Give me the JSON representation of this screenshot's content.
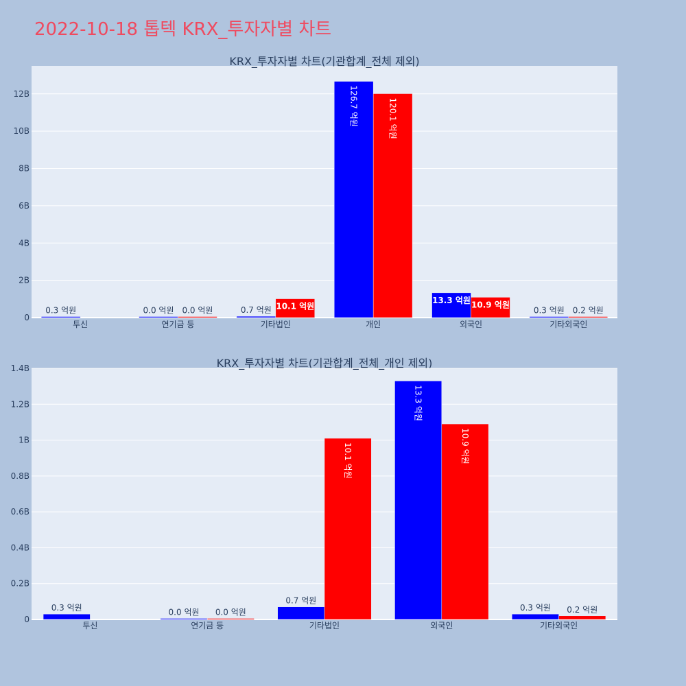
{
  "page_title": "2022-10-18 톱텍 KRX_투자자별 차트",
  "colors": {
    "background": "#b0c4de",
    "plot_bg": "#e5ecf6",
    "buy": "#0000ff",
    "sell": "#ff0000",
    "title": "#ef4a5f"
  },
  "chart_data": [
    {
      "type": "bar",
      "title": "KRX_투자자별 차트(기관합계_전체 제외)",
      "categories": [
        "투신",
        "연기금 등",
        "기타법인",
        "개인",
        "외국인",
        "기타외국인"
      ],
      "ylim": [
        0,
        13500000000
      ],
      "yticks": [
        0,
        2000000000,
        4000000000,
        6000000000,
        8000000000,
        10000000000,
        12000000000
      ],
      "ytick_labels": [
        "0",
        "2B",
        "4B",
        "6B",
        "8B",
        "10B",
        "12B"
      ],
      "series": [
        {
          "color": "#0000ff",
          "values": [
            30000000,
            2000000,
            70000000,
            12670000000,
            1330000000,
            30000000
          ],
          "labels": [
            "0.3 억원",
            "0.0 억원",
            "0.7 억원",
            "126.7 억원",
            "13.3 억원",
            "0.3 억원"
          ]
        },
        {
          "color": "#ff0000",
          "values": [
            0,
            2000000,
            1010000000,
            12010000000,
            1090000000,
            20000000
          ],
          "labels": [
            "",
            "0.0 억원",
            "10.1 억원",
            "120.1 억원",
            "10.9 억원",
            "0.2 억원"
          ]
        }
      ],
      "grid": true
    },
    {
      "type": "bar",
      "title": "KRX_투자자별 차트(기관합계_전체_개인 제외)",
      "categories": [
        "투신",
        "연기금 등",
        "기타법인",
        "외국인",
        "기타외국인"
      ],
      "ylim": [
        0,
        1400000000
      ],
      "yticks": [
        0,
        200000000,
        400000000,
        600000000,
        800000000,
        1000000000,
        1200000000,
        1400000000
      ],
      "ytick_labels": [
        "0",
        "0.2B",
        "0.4B",
        "0.6B",
        "0.8B",
        "1B",
        "1.2B",
        "1.4B"
      ],
      "series": [
        {
          "color": "#0000ff",
          "values": [
            30000000,
            2000000,
            70000000,
            1330000000,
            30000000
          ],
          "labels": [
            "0.3 억원",
            "0.0 억원",
            "0.7 억원",
            "13.3 억원",
            "0.3 억원"
          ]
        },
        {
          "color": "#ff0000",
          "values": [
            0,
            2000000,
            1010000000,
            1090000000,
            20000000
          ],
          "labels": [
            "",
            "0.0 억원",
            "10.1 억원",
            "10.9 억원",
            "0.2 억원"
          ]
        }
      ],
      "grid": true
    }
  ]
}
